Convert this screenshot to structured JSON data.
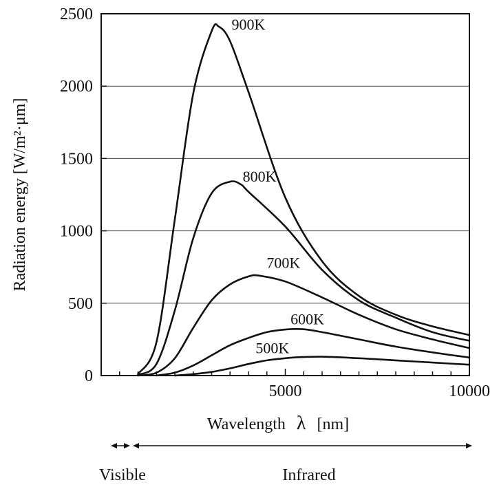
{
  "chart_data": {
    "type": "line",
    "title": "",
    "xlabel_main": "Wavelength",
    "xlabel_symbol": "λ",
    "xlabel_unit": "[nm]",
    "ylabel": "Radiation energy  [W/m²·μm]",
    "xlim": [
      0,
      10000
    ],
    "ylim": [
      0,
      2500
    ],
    "x_ticks": [
      5000,
      10000
    ],
    "y_ticks": [
      0,
      500,
      1000,
      1500,
      2000,
      2500
    ],
    "grid": "horizontal",
    "series": [
      {
        "name": "900K",
        "x": [
          1000,
          1500,
          2000,
          2500,
          3000,
          3200,
          3500,
          4000,
          5000,
          6000,
          7000,
          8000,
          9000,
          10000
        ],
        "y": [
          10,
          230,
          1080,
          1950,
          2380,
          2410,
          2310,
          1960,
          1230,
          790,
          550,
          420,
          340,
          280
        ]
      },
      {
        "name": "800K",
        "x": [
          1000,
          1500,
          2000,
          2500,
          3000,
          3500,
          3800,
          4000,
          5000,
          6000,
          7000,
          8000,
          9000,
          10000
        ],
        "y": [
          5,
          80,
          450,
          950,
          1260,
          1340,
          1320,
          1270,
          1030,
          730,
          520,
          400,
          300,
          240
        ]
      },
      {
        "name": "700K",
        "x": [
          1000,
          1500,
          2000,
          2500,
          3000,
          3500,
          4000,
          4300,
          5000,
          6000,
          7000,
          8000,
          9000,
          10000
        ],
        "y": [
          0,
          20,
          120,
          330,
          520,
          630,
          685,
          690,
          650,
          540,
          420,
          320,
          250,
          190
        ]
      },
      {
        "name": "600K",
        "x": [
          1500,
          2000,
          2500,
          3000,
          3500,
          4000,
          4500,
          5000,
          5500,
          6000,
          7000,
          8000,
          9000,
          10000
        ],
        "y": [
          0,
          20,
          70,
          140,
          210,
          260,
          300,
          318,
          320,
          300,
          250,
          200,
          160,
          125
        ]
      },
      {
        "name": "500K",
        "x": [
          2000,
          2500,
          3000,
          3500,
          4000,
          4500,
          5000,
          5500,
          6000,
          7000,
          8000,
          9000,
          10000
        ],
        "y": [
          0,
          10,
          25,
          50,
          80,
          105,
          120,
          128,
          130,
          120,
          105,
          90,
          75
        ]
      }
    ],
    "series_labels": [
      {
        "name": "900K",
        "x": 4000,
        "y": 2390
      },
      {
        "name": "800K",
        "x": 4300,
        "y": 1340
      },
      {
        "name": "700K",
        "x": 4950,
        "y": 745
      },
      {
        "name": "600K",
        "x": 5600,
        "y": 355
      },
      {
        "name": "500K",
        "x": 4650,
        "y": 155
      }
    ]
  },
  "spectrum_bands": {
    "visible_label": "Visible",
    "infrared_label": "Infrared"
  }
}
